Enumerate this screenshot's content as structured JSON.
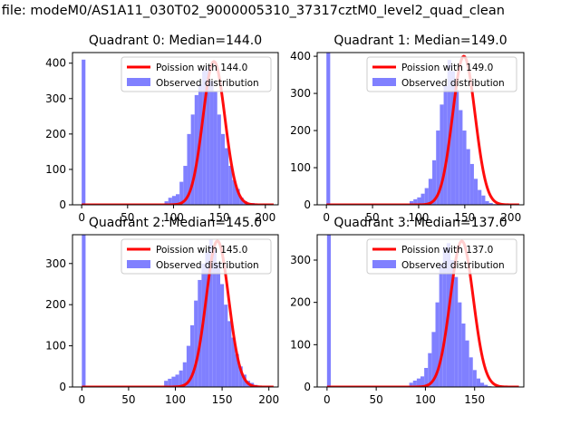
{
  "figure": {
    "title": "n file: modeM0/AS1A11_030T02_9000005310_37317cztM0_level2_quad_clean"
  },
  "colors": {
    "bars": "#8080ff",
    "fit": "#ff0000",
    "lead_bar": "#7f7fff"
  },
  "chart_data": [
    {
      "type": "bar",
      "title": "Quadrant 0: Median=144.0",
      "xlim": [
        -10,
        214
      ],
      "ylim": [
        0,
        430
      ],
      "xticks": [
        0,
        50,
        100,
        150,
        200
      ],
      "yticks": [
        0,
        100,
        200,
        300,
        400
      ],
      "legend": [
        "Poission with 144.0",
        "Observed distribution"
      ],
      "legend_loc": "upper right",
      "bins": {
        "start": 0,
        "width": 4.1,
        "values": [
          410,
          0,
          0,
          0,
          0,
          0,
          0,
          0,
          0,
          0,
          0,
          0,
          0,
          0,
          0,
          0,
          0,
          0,
          0,
          0,
          0,
          0,
          10,
          20,
          25,
          30,
          65,
          110,
          200,
          255,
          310,
          340,
          380,
          390,
          350,
          320,
          255,
          200,
          160,
          110,
          70,
          45,
          20,
          10,
          5,
          5,
          2,
          1,
          0,
          0,
          0
        ]
      },
      "fit": {
        "mean": 144,
        "peak": 405
      }
    },
    {
      "type": "bar",
      "title": "Quadrant 1: Median=149.0",
      "xlim": [
        -10,
        214
      ],
      "ylim": [
        0,
        410
      ],
      "xticks": [
        0,
        50,
        100,
        150,
        200
      ],
      "yticks": [
        0,
        100,
        200,
        300,
        400
      ],
      "legend": [
        "Poission with 149.0",
        "Observed distribution"
      ],
      "legend_loc": "upper right",
      "bins": {
        "start": 0,
        "width": 4.1,
        "values": [
          410,
          0,
          0,
          0,
          0,
          0,
          0,
          0,
          0,
          0,
          0,
          0,
          0,
          0,
          0,
          0,
          0,
          0,
          0,
          0,
          0,
          0,
          10,
          15,
          20,
          30,
          45,
          70,
          120,
          200,
          270,
          320,
          390,
          360,
          310,
          255,
          200,
          150,
          110,
          70,
          40,
          25,
          10,
          5,
          2,
          1,
          0,
          0,
          0,
          0,
          0
        ]
      },
      "fit": {
        "mean": 149,
        "peak": 400
      }
    },
    {
      "type": "bar",
      "title": "Quadrant 2: Median=145.0",
      "xlim": [
        -10,
        210
      ],
      "ylim": [
        0,
        370
      ],
      "xticks": [
        0,
        50,
        100,
        150,
        200
      ],
      "yticks": [
        0,
        100,
        200,
        300
      ],
      "legend": [
        "Poission with 145.0",
        "Observed distribution"
      ],
      "legend_loc": "upper right",
      "bins": {
        "start": 0,
        "width": 4.0,
        "values": [
          370,
          0,
          0,
          0,
          0,
          0,
          0,
          0,
          0,
          0,
          0,
          0,
          0,
          0,
          0,
          0,
          0,
          0,
          0,
          0,
          0,
          0,
          15,
          20,
          25,
          30,
          40,
          60,
          100,
          150,
          210,
          260,
          300,
          330,
          360,
          340,
          300,
          250,
          200,
          160,
          120,
          80,
          50,
          30,
          15,
          10,
          5,
          0,
          0,
          0,
          0
        ]
      },
      "fit": {
        "mean": 145,
        "peak": 355
      }
    },
    {
      "type": "bar",
      "title": "Quadrant 3: Median=137.0",
      "xlim": [
        -10,
        200
      ],
      "ylim": [
        0,
        360
      ],
      "xticks": [
        0,
        50,
        100,
        150
      ],
      "yticks": [
        0,
        100,
        200,
        300
      ],
      "legend": [
        "Poission with 137.0",
        "Observed distribution"
      ],
      "legend_loc": "upper right",
      "bins": {
        "start": 0,
        "width": 3.8,
        "values": [
          360,
          0,
          0,
          0,
          0,
          0,
          0,
          0,
          0,
          0,
          0,
          0,
          0,
          0,
          0,
          0,
          0,
          0,
          0,
          0,
          0,
          0,
          10,
          15,
          20,
          25,
          45,
          80,
          130,
          200,
          290,
          330,
          340,
          300,
          260,
          200,
          150,
          110,
          70,
          40,
          20,
          10,
          5,
          2,
          0,
          0,
          0,
          0,
          0,
          0,
          0
        ]
      },
      "fit": {
        "mean": 137,
        "peak": 345
      }
    }
  ]
}
